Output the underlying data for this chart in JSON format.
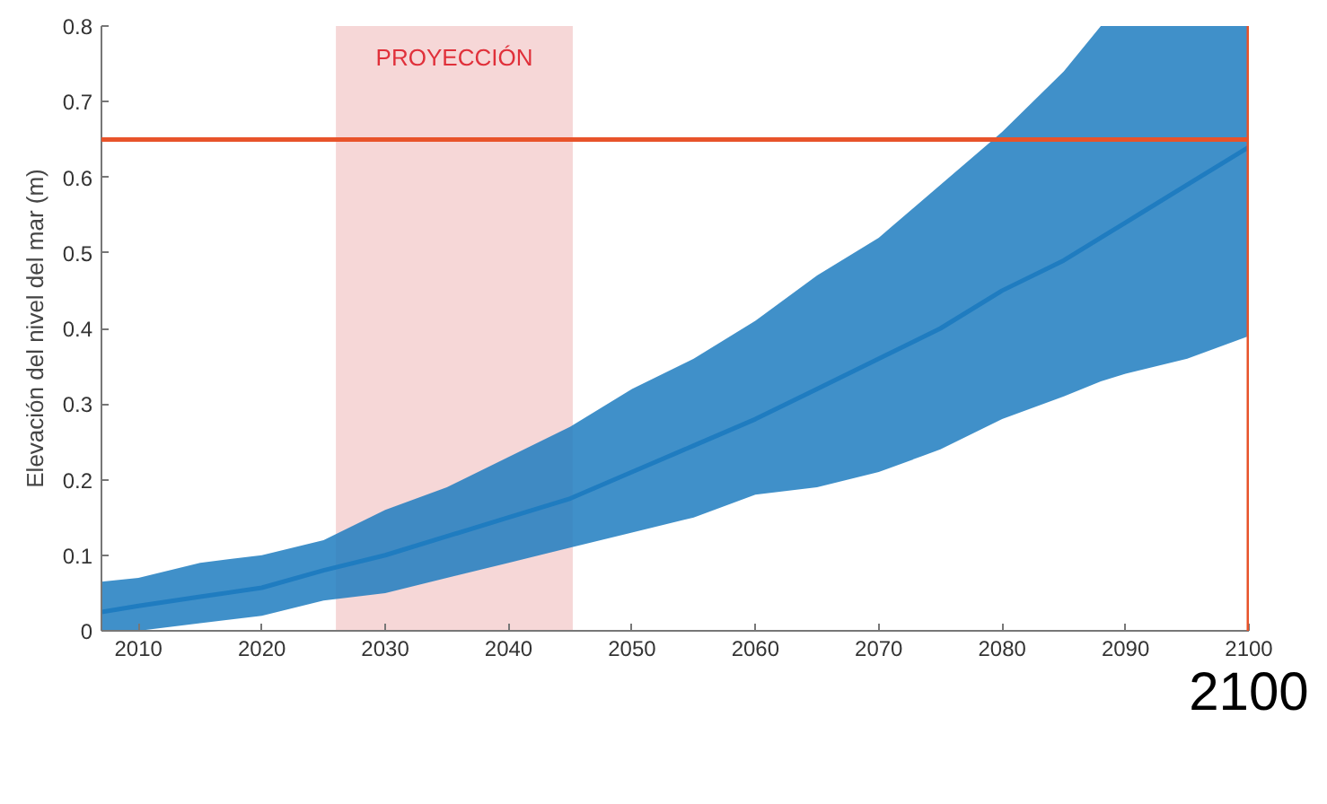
{
  "chart_data": {
    "type": "line",
    "ylabel": "Elevación del nivel del mar (m)",
    "x": [
      2007,
      2010,
      2015,
      2020,
      2025,
      2030,
      2035,
      2040,
      2045,
      2050,
      2055,
      2060,
      2065,
      2070,
      2075,
      2080,
      2085,
      2088,
      2090,
      2095,
      2100
    ],
    "series": [
      {
        "color": "#1f7cc0",
        "values": [
          0.025,
          0.033,
          0.045,
          0.057,
          0.08,
          0.1,
          0.125,
          0.15,
          0.175,
          0.21,
          0.245,
          0.28,
          0.32,
          0.36,
          0.4,
          0.45,
          0.49,
          0.52,
          0.54,
          0.59,
          0.64
        ],
        "lower": [
          0.0,
          0.0,
          0.01,
          0.02,
          0.04,
          0.05,
          0.07,
          0.09,
          0.11,
          0.13,
          0.15,
          0.18,
          0.19,
          0.21,
          0.24,
          0.28,
          0.31,
          0.33,
          0.34,
          0.36,
          0.39
        ],
        "upper": [
          0.065,
          0.07,
          0.09,
          0.1,
          0.12,
          0.16,
          0.19,
          0.23,
          0.27,
          0.32,
          0.36,
          0.41,
          0.47,
          0.52,
          0.59,
          0.66,
          0.74,
          0.8,
          0.8,
          0.8,
          0.8
        ]
      }
    ],
    "xlim": [
      2007,
      2100
    ],
    "ylim": [
      0,
      0.8
    ],
    "xticks": [
      2010,
      2020,
      2030,
      2040,
      2050,
      2060,
      2070,
      2080,
      2090,
      2100
    ],
    "yticks": [
      0,
      0.1,
      0.2,
      0.3,
      0.4,
      0.5,
      0.6,
      0.7,
      0.8
    ],
    "bands": [
      {
        "axis": "x",
        "from": 2026,
        "to": 2045.2,
        "label": "PROYECCIÓN",
        "color": "#f5d0d0"
      }
    ],
    "ref_lines": [
      {
        "axis": "y",
        "value": 0.65,
        "label": null,
        "color": "#e8532a"
      },
      {
        "axis": "x",
        "value": 2100,
        "label": "2100",
        "color": "#e8532a"
      }
    ],
    "grid": false
  }
}
